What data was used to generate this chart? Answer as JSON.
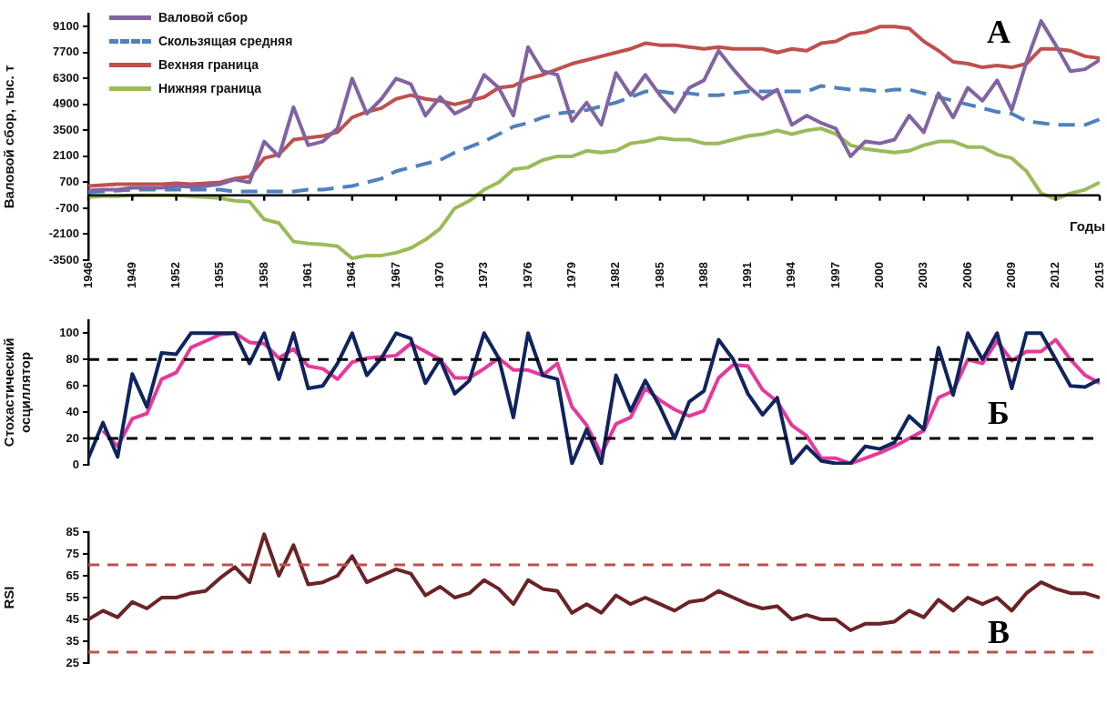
{
  "chart_data": [
    {
      "type": "line",
      "ylabel": "Валовой сбор, тыс. т",
      "xlabel": "Годы",
      "annotations": [
        "А"
      ],
      "x": [
        1946,
        1947,
        1948,
        1949,
        1950,
        1951,
        1952,
        1953,
        1954,
        1955,
        1956,
        1957,
        1958,
        1959,
        1960,
        1961,
        1962,
        1963,
        1964,
        1965,
        1966,
        1967,
        1968,
        1969,
        1970,
        1971,
        1972,
        1973,
        1974,
        1975,
        1976,
        1977,
        1978,
        1979,
        1980,
        1981,
        1982,
        1983,
        1984,
        1985,
        1986,
        1987,
        1988,
        1989,
        1990,
        1991,
        1992,
        1993,
        1994,
        1995,
        1996,
        1997,
        1998,
        1999,
        2000,
        2001,
        2002,
        2003,
        2004,
        2005,
        2006,
        2007,
        2008,
        2009,
        2010,
        2011,
        2012,
        2013,
        2014,
        2015
      ],
      "xlim": [
        1946,
        2015
      ],
      "xticks": [
        1946,
        1949,
        1952,
        1955,
        1958,
        1961,
        1964,
        1967,
        1970,
        1973,
        1976,
        1979,
        1982,
        1985,
        1988,
        1991,
        1994,
        1997,
        2000,
        2003,
        2006,
        2009,
        2012,
        2015
      ],
      "ylim": [
        -3500,
        9800
      ],
      "yticks": [
        -3500,
        -2100,
        -700,
        700,
        2100,
        3500,
        4900,
        6300,
        7700,
        9100
      ],
      "grid": false,
      "legend": "top left",
      "marker": "none",
      "series": [
        {
          "name": "Валовой сбор",
          "color": "#8064a2",
          "line_style": "solid",
          "values": [
            250,
            300,
            300,
            400,
            400,
            400,
            500,
            450,
            500,
            600,
            850,
            700,
            2900,
            2100,
            4750,
            2700,
            2900,
            3600,
            6300,
            4400,
            5200,
            6300,
            6000,
            4300,
            5300,
            4400,
            4800,
            6500,
            5800,
            4300,
            8000,
            6700,
            6500,
            4000,
            5000,
            3800,
            6600,
            5400,
            6500,
            5400,
            4500,
            5800,
            6200,
            7800,
            6800,
            5900,
            5200,
            5700,
            3800,
            4300,
            3900,
            3600,
            2100,
            2900,
            2800,
            3000,
            4300,
            3400,
            5500,
            4200,
            5800,
            5100,
            6200,
            4600,
            7200,
            9400,
            8100,
            6700,
            6800,
            7300
          ]
        },
        {
          "name": "Скользящая средняя",
          "color": "#4f81bd",
          "line_style": "dashed",
          "values": [
            150,
            200,
            250,
            300,
            300,
            300,
            300,
            300,
            300,
            300,
            200,
            200,
            200,
            200,
            200,
            300,
            300,
            400,
            500,
            700,
            900,
            1300,
            1500,
            1700,
            1900,
            2300,
            2600,
            2900,
            3300,
            3700,
            3900,
            4200,
            4400,
            4500,
            4600,
            4800,
            5000,
            5300,
            5600,
            5600,
            5500,
            5500,
            5400,
            5400,
            5500,
            5600,
            5600,
            5600,
            5600,
            5600,
            5900,
            5800,
            5700,
            5700,
            5600,
            5700,
            5700,
            5500,
            5300,
            5100,
            4900,
            4700,
            4500,
            4400,
            4000,
            3900,
            3800,
            3800,
            3800,
            4100
          ]
        },
        {
          "name": "Вехняя граница",
          "color": "#c0504d",
          "line_style": "solid",
          "values": [
            500,
            550,
            600,
            600,
            600,
            600,
            650,
            600,
            650,
            700,
            900,
            1000,
            2000,
            2200,
            3000,
            3100,
            3200,
            3400,
            4200,
            4500,
            4700,
            5200,
            5400,
            5200,
            5100,
            4900,
            5100,
            5300,
            5800,
            5900,
            6300,
            6500,
            6800,
            7100,
            7300,
            7500,
            7700,
            7900,
            8200,
            8100,
            8100,
            8000,
            7900,
            8000,
            7900,
            7900,
            7900,
            7700,
            7900,
            7800,
            8200,
            8300,
            8700,
            8800,
            9100,
            9100,
            9000,
            8300,
            7800,
            7200,
            7100,
            6900,
            7000,
            6900,
            7100,
            7900,
            7900,
            7800,
            7500,
            7400
          ]
        },
        {
          "name": "Нижняя граница",
          "color": "#9bbb59",
          "line_style": "solid",
          "values": [
            -100,
            -50,
            -50,
            0,
            0,
            0,
            0,
            -50,
            -100,
            -150,
            -300,
            -350,
            -1300,
            -1500,
            -2500,
            -2600,
            -2650,
            -2750,
            -3400,
            -3250,
            -3250,
            -3100,
            -2850,
            -2400,
            -1800,
            -700,
            -300,
            300,
            700,
            1400,
            1500,
            1900,
            2100,
            2100,
            2400,
            2300,
            2400,
            2800,
            2900,
            3100,
            3000,
            3000,
            2800,
            2800,
            3000,
            3200,
            3300,
            3500,
            3300,
            3500,
            3600,
            3300,
            2700,
            2500,
            2400,
            2300,
            2400,
            2700,
            2900,
            2900,
            2600,
            2600,
            2200,
            2000,
            1300,
            100,
            -200,
            100,
            300,
            700
          ]
        }
      ]
    },
    {
      "type": "line",
      "ylabel": "Стохастический\nосциллятор",
      "annotations": [
        "Б"
      ],
      "x": [
        1946,
        1947,
        1948,
        1949,
        1950,
        1951,
        1952,
        1953,
        1954,
        1955,
        1956,
        1957,
        1958,
        1959,
        1960,
        1961,
        1962,
        1963,
        1964,
        1965,
        1966,
        1967,
        1968,
        1969,
        1970,
        1971,
        1972,
        1973,
        1974,
        1975,
        1976,
        1977,
        1978,
        1979,
        1980,
        1981,
        1982,
        1983,
        1984,
        1985,
        1986,
        1987,
        1988,
        1989,
        1990,
        1991,
        1992,
        1993,
        1994,
        1995,
        1996,
        1997,
        1998,
        1999,
        2000,
        2001,
        2002,
        2003,
        2004,
        2005,
        2006,
        2007,
        2008,
        2009,
        2010,
        2011,
        2012,
        2013,
        2014,
        2015
      ],
      "xlim": [
        1946,
        2015
      ],
      "ylim": [
        0,
        110
      ],
      "yticks": [
        0,
        20,
        40,
        60,
        80,
        100
      ],
      "tick_labels": "y",
      "grid": false,
      "marker": "none",
      "ref_lines": [
        {
          "axis": "y",
          "value": 80,
          "color": "#000000",
          "line_style": "dashed"
        },
        {
          "axis": "y",
          "value": 20,
          "color": "#000000",
          "line_style": "dashed"
        }
      ],
      "series": [
        {
          "color": "#10245e",
          "line_style": "solid",
          "values": [
            5,
            32,
            6,
            69,
            44,
            85,
            84,
            100,
            100,
            100,
            100,
            77,
            100,
            65,
            100,
            58,
            60,
            77,
            100,
            68,
            81,
            100,
            96,
            62,
            80,
            54,
            64,
            100,
            81,
            36,
            100,
            68,
            65,
            1,
            27,
            1,
            68,
            41,
            64,
            44,
            20,
            48,
            56,
            95,
            80,
            54,
            38,
            51,
            1,
            14,
            3,
            1,
            1,
            14,
            12,
            17,
            37,
            27,
            89,
            53,
            100,
            80,
            100,
            58,
            100,
            100,
            80,
            60,
            59,
            65
          ]
        },
        {
          "color": "#e6399b",
          "line_style": "solid",
          "values": [
            null,
            26,
            14,
            35,
            39,
            65,
            70,
            89,
            94,
            99,
            100,
            93,
            92,
            81,
            88,
            75,
            73,
            65,
            78,
            81,
            82,
            83,
            92,
            86,
            80,
            66,
            66,
            73,
            81,
            72,
            72,
            68,
            77,
            44,
            30,
            8,
            31,
            36,
            58,
            49,
            42,
            37,
            41,
            66,
            76,
            75,
            57,
            48,
            30,
            22,
            5,
            5,
            1,
            5,
            9,
            14,
            20,
            26,
            51,
            56,
            80,
            77,
            94,
            79,
            86,
            86,
            95,
            80,
            68,
            62
          ]
        }
      ]
    },
    {
      "type": "line",
      "ylabel": "RSI",
      "annotations": [
        "В"
      ],
      "x": [
        1946,
        1947,
        1948,
        1949,
        1950,
        1951,
        1952,
        1953,
        1954,
        1955,
        1956,
        1957,
        1958,
        1959,
        1960,
        1961,
        1962,
        1963,
        1964,
        1965,
        1966,
        1967,
        1968,
        1969,
        1970,
        1971,
        1972,
        1973,
        1974,
        1975,
        1976,
        1977,
        1978,
        1979,
        1980,
        1981,
        1982,
        1983,
        1984,
        1985,
        1986,
        1987,
        1988,
        1989,
        1990,
        1991,
        1992,
        1993,
        1994,
        1995,
        1996,
        1997,
        1998,
        1999,
        2000,
        2001,
        2002,
        2003,
        2004,
        2005,
        2006,
        2007,
        2008,
        2009,
        2010,
        2011,
        2012,
        2013,
        2014,
        2015
      ],
      "xlim": [
        1946,
        2015
      ],
      "ylim": [
        25,
        85
      ],
      "yticks": [
        25,
        35,
        45,
        55,
        65,
        75,
        85
      ],
      "tick_labels": "y",
      "grid": false,
      "marker": "none",
      "ref_lines": [
        {
          "axis": "y",
          "value": 70,
          "color": "#c0504d",
          "line_style": "dashed"
        },
        {
          "axis": "y",
          "value": 30,
          "color": "#c0504d",
          "line_style": "dashed"
        }
      ],
      "series": [
        {
          "color": "#6a2326",
          "line_style": "solid",
          "values": [
            45,
            49,
            46,
            53,
            50,
            55,
            55,
            57,
            58,
            64,
            69,
            62,
            84,
            65,
            79,
            61,
            62,
            65,
            74,
            62,
            65,
            68,
            66,
            56,
            60,
            55,
            57,
            63,
            59,
            52,
            63,
            59,
            58,
            48,
            52,
            48,
            56,
            52,
            55,
            52,
            49,
            53,
            54,
            58,
            55,
            52,
            50,
            51,
            45,
            47,
            45,
            45,
            40,
            43,
            43,
            44,
            49,
            46,
            54,
            49,
            55,
            52,
            55,
            49,
            57,
            62,
            59,
            57,
            57,
            55
          ]
        }
      ]
    }
  ]
}
